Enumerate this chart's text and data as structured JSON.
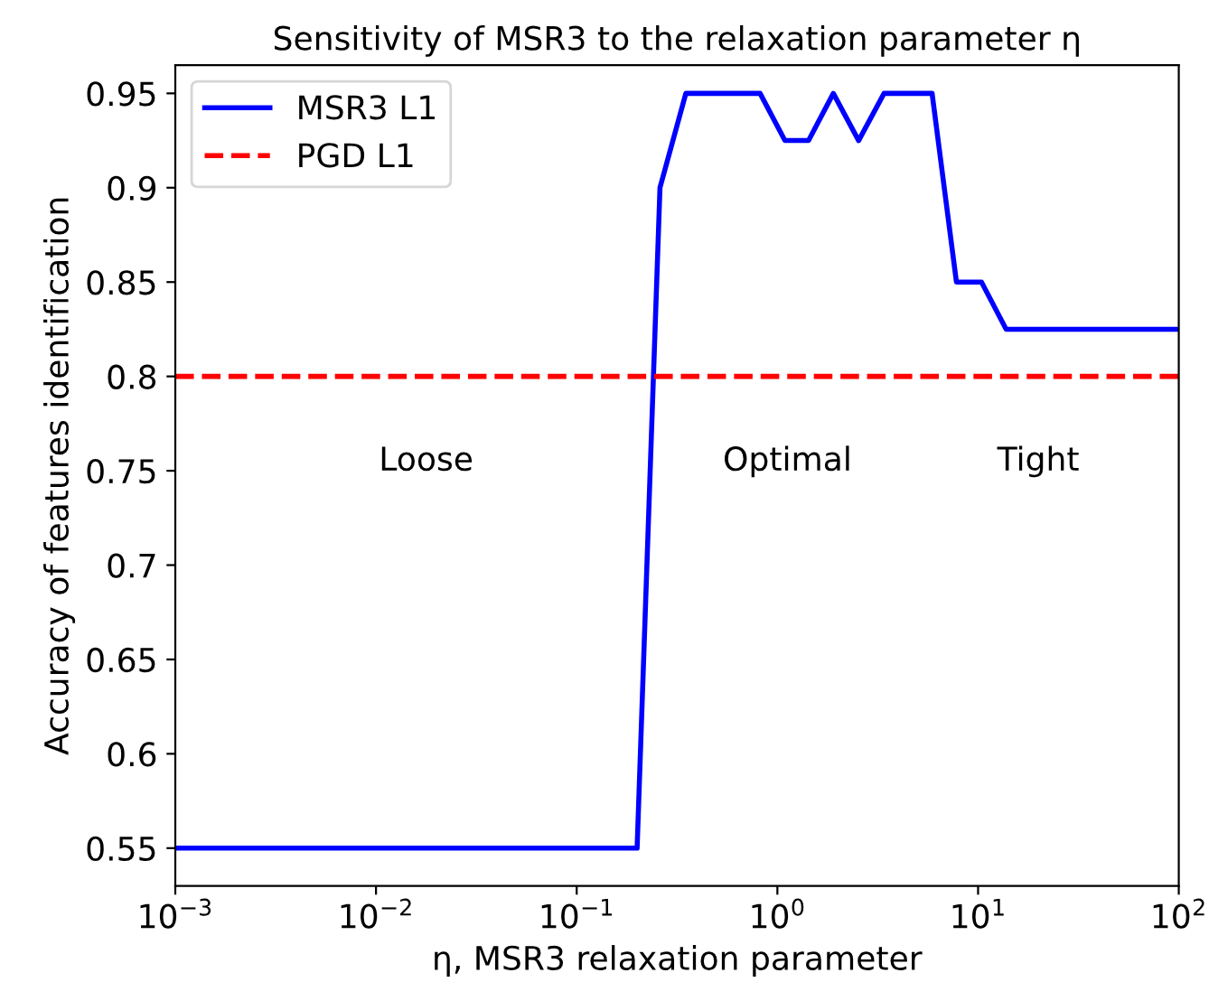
{
  "chart_data": {
    "type": "line",
    "title": "Sensitivity of MSR3 to the relaxation parameter η",
    "xlabel": "η, MSR3 relaxation parameter",
    "ylabel": "Accuracy of features identification",
    "log": "x",
    "xlim": [
      0.001,
      100
    ],
    "xticks": [
      {
        "value": 0.001,
        "label": "10$^{−3}$"
      },
      {
        "value": 0.01,
        "label": "10$^{−2}$"
      },
      {
        "value": 0.1,
        "label": "10$^{−1}$"
      },
      {
        "value": 1,
        "label": "10$^{0}$"
      },
      {
        "value": 10,
        "label": "10$^{1}$"
      },
      {
        "value": 100,
        "label": "10$^{2}$"
      }
    ],
    "ylim": [
      0.53,
      0.965
    ],
    "yticks": [
      0.55,
      0.6,
      0.65,
      0.7,
      0.75,
      0.8,
      0.85,
      0.9,
      0.95
    ],
    "grid": false,
    "legend": "top left",
    "marker": "none",
    "series": [
      {
        "name": "MSR3 L1",
        "color": "#0000ff",
        "line_style": "solid",
        "x": [
          0.001,
          0.2,
          0.26,
          0.35,
          0.82,
          1.09,
          1.43,
          1.9,
          2.54,
          3.4,
          5.9,
          7.8,
          10.4,
          13.8,
          100
        ],
        "values": [
          0.55,
          0.55,
          0.9,
          0.95,
          0.95,
          0.925,
          0.925,
          0.95,
          0.925,
          0.95,
          0.95,
          0.85,
          0.85,
          0.825,
          0.825
        ]
      }
    ],
    "ref_lines": [
      {
        "axis": "y",
        "value": 0.8,
        "label": "PGD L1",
        "color": "#ff0000",
        "line_style": "dashed"
      }
    ],
    "annotations": [
      "Loose",
      "Optimal",
      "Tight"
    ]
  }
}
